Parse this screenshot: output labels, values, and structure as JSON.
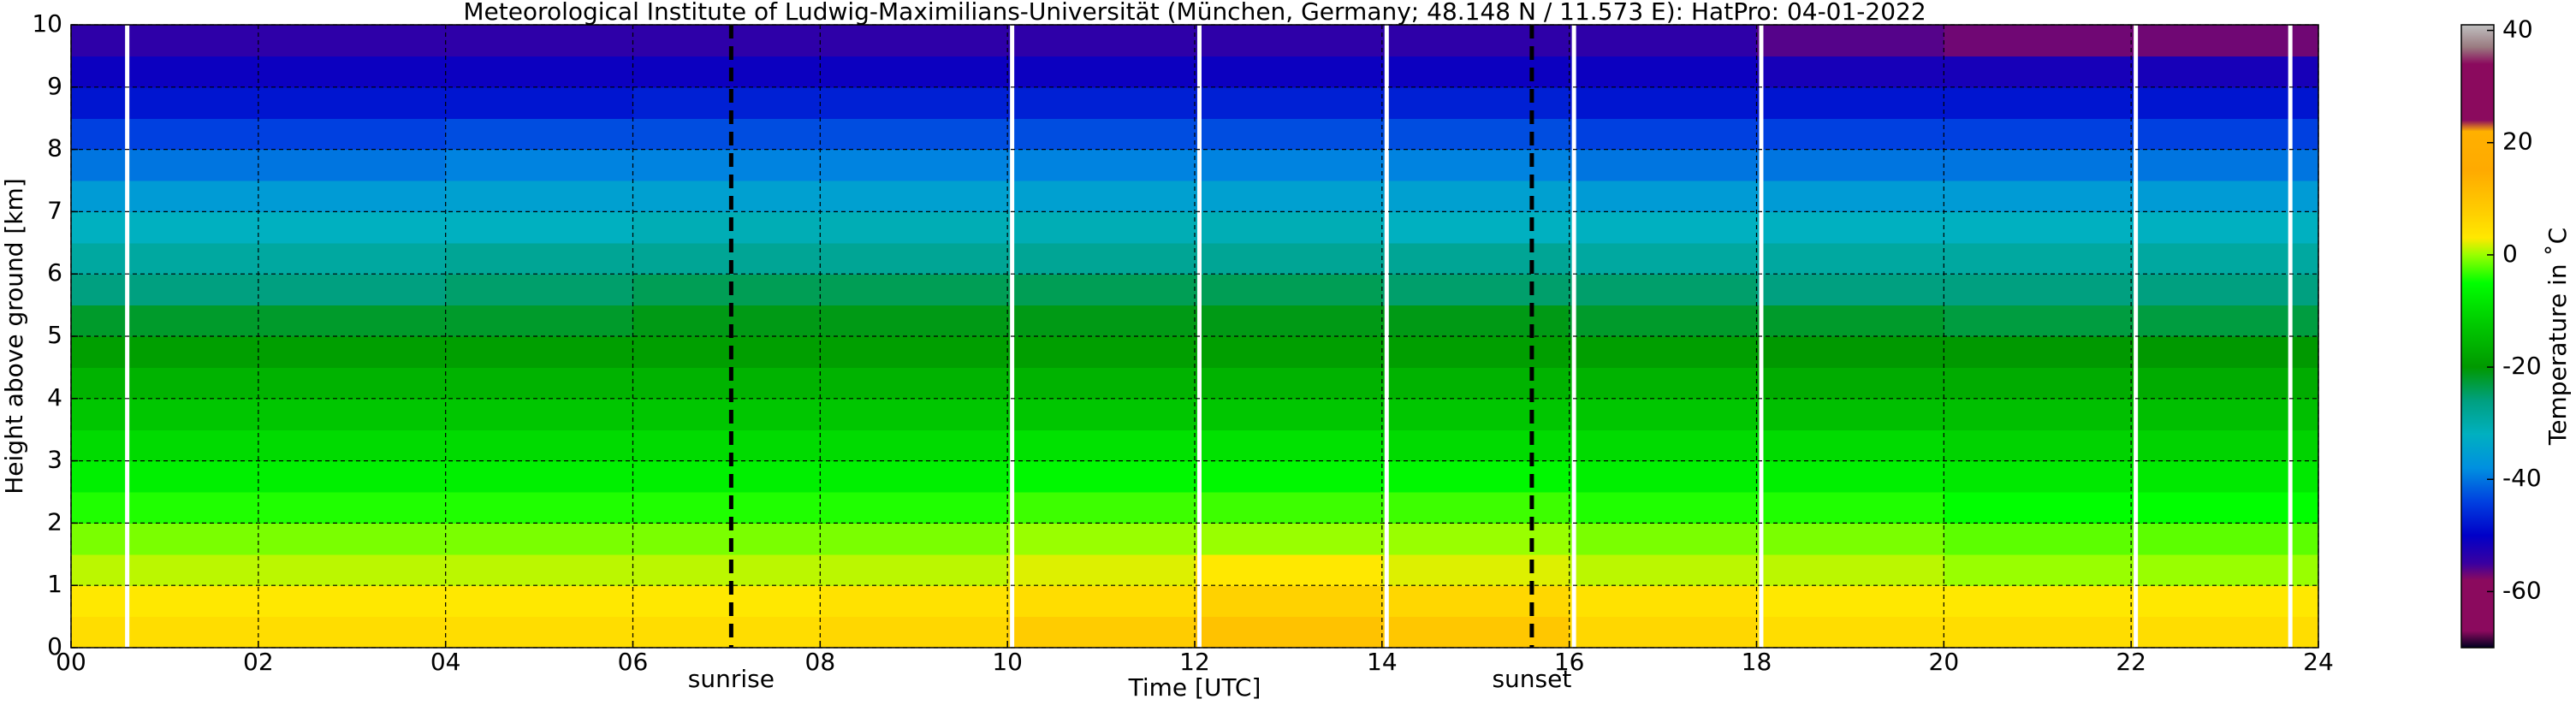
{
  "chart_data": {
    "type": "heatmap",
    "title": "Meteorological Institute of Ludwig-Maximilians-Universität (München, Germany; 48.148 N / 11.573 E):    HatPro: 04-01-2022",
    "x_label": "Time [UTC]",
    "y_label": "Height above ground [km]",
    "colorbar_label": "Temperature in ˚C",
    "x": [
      1,
      3,
      5,
      7,
      9,
      11,
      13,
      15,
      17,
      19,
      21,
      23
    ],
    "y": [
      0.25,
      0.75,
      1.25,
      1.75,
      2.25,
      2.75,
      3.25,
      3.75,
      4.25,
      4.75,
      5.25,
      5.75,
      6.25,
      6.75,
      7.25,
      7.75,
      8.25,
      8.75,
      9.25,
      9.75
    ],
    "z": [
      [
        5,
        5,
        5,
        5,
        6,
        8,
        10,
        9,
        6,
        5,
        5,
        5
      ],
      [
        3,
        3,
        3,
        3,
        4,
        5,
        7,
        6,
        4,
        3,
        3,
        3
      ],
      [
        1,
        1,
        1,
        1,
        1,
        2,
        3,
        2,
        1,
        1,
        0,
        0
      ],
      [
        -1,
        -1,
        -1,
        -1,
        -1,
        0,
        0,
        0,
        -1,
        -1,
        -2,
        -2
      ],
      [
        -4,
        -4,
        -4,
        -4,
        -4,
        -3,
        -3,
        -3,
        -4,
        -4,
        -5,
        -5
      ],
      [
        -7,
        -7,
        -7,
        -7,
        -7,
        -6,
        -6,
        -6,
        -7,
        -7,
        -8,
        -8
      ],
      [
        -10,
        -10,
        -10,
        -10,
        -10,
        -9,
        -9,
        -10,
        -10,
        -10,
        -11,
        -11
      ],
      [
        -13,
        -13,
        -13,
        -13,
        -13,
        -13,
        -13,
        -13,
        -13,
        -14,
        -14,
        -14
      ],
      [
        -16,
        -16,
        -16,
        -16,
        -16,
        -16,
        -16,
        -16,
        -16,
        -17,
        -17,
        -17
      ],
      [
        -19,
        -19,
        -19,
        -19,
        -19,
        -19,
        -19,
        -19,
        -19,
        -20,
        -20,
        -20
      ],
      [
        -22,
        -22,
        -22,
        -21,
        -21,
        -21,
        -21,
        -21,
        -22,
        -22,
        -23,
        -23
      ],
      [
        -26,
        -26,
        -25,
        -24,
        -24,
        -24,
        -24,
        -25,
        -25,
        -26,
        -26,
        -26
      ],
      [
        -29,
        -29,
        -28,
        -28,
        -28,
        -28,
        -28,
        -28,
        -29,
        -29,
        -29,
        -29
      ],
      [
        -32,
        -32,
        -32,
        -31,
        -31,
        -31,
        -31,
        -32,
        -32,
        -32,
        -32,
        -32
      ],
      [
        -36,
        -36,
        -35,
        -35,
        -35,
        -35,
        -35,
        -35,
        -36,
        -36,
        -36,
        -36
      ],
      [
        -40,
        -40,
        -39,
        -39,
        -39,
        -39,
        -39,
        -39,
        -40,
        -40,
        -40,
        -40
      ],
      [
        -44,
        -44,
        -43,
        -43,
        -43,
        -43,
        -43,
        -43,
        -44,
        -44,
        -44,
        -44
      ],
      [
        -48,
        -48,
        -48,
        -47,
        -47,
        -47,
        -47,
        -47,
        -48,
        -48,
        -48,
        -48
      ],
      [
        -51,
        -51,
        -51,
        -51,
        -51,
        -51,
        -51,
        -51,
        -51,
        -52,
        -52,
        -52
      ],
      [
        -54,
        -54,
        -54,
        -54,
        -54,
        -54,
        -54,
        -54,
        -54,
        -56,
        -57,
        -57
      ]
    ],
    "xlim": [
      0,
      24
    ],
    "xticks": [
      {
        "value": 0,
        "label": "00"
      },
      {
        "value": 2,
        "label": "02"
      },
      {
        "value": 4,
        "label": "04"
      },
      {
        "value": 6,
        "label": "06"
      },
      {
        "value": 8,
        "label": "08"
      },
      {
        "value": 10,
        "label": "10"
      },
      {
        "value": 12,
        "label": "12"
      },
      {
        "value": 14,
        "label": "14"
      },
      {
        "value": 16,
        "label": "16"
      },
      {
        "value": 18,
        "label": "18"
      },
      {
        "value": 20,
        "label": "20"
      },
      {
        "value": 22,
        "label": "22"
      },
      {
        "value": 24,
        "label": "24"
      }
    ],
    "ylim": [
      0,
      10
    ],
    "yticks": [
      0,
      1,
      2,
      3,
      4,
      5,
      6,
      7,
      8,
      9,
      10
    ],
    "clim": [
      -70,
      41
    ],
    "cticks": [
      -60,
      -40,
      -20,
      0,
      20,
      40
    ],
    "colormap": [
      [
        -70,
        "#000020"
      ],
      [
        -67,
        "#8b0a5e"
      ],
      [
        -58,
        "#8b0a5e"
      ],
      [
        -55,
        "#3a00a0"
      ],
      [
        -50,
        "#0000c8"
      ],
      [
        -44,
        "#0040e0"
      ],
      [
        -38,
        "#0090e0"
      ],
      [
        -32,
        "#00b0c0"
      ],
      [
        -26,
        "#00a080"
      ],
      [
        -20,
        "#009900"
      ],
      [
        -12,
        "#00cc00"
      ],
      [
        -5,
        "#00ff00"
      ],
      [
        0,
        "#99ff00"
      ],
      [
        3,
        "#ffe800"
      ],
      [
        8,
        "#ffcc00"
      ],
      [
        15,
        "#ffaa00"
      ],
      [
        22,
        "#ffb000"
      ],
      [
        24,
        "#8b0a5e"
      ],
      [
        34,
        "#8b0a5e"
      ],
      [
        37,
        "#9a7a80"
      ],
      [
        41,
        "#c0c0c0"
      ]
    ],
    "grid": true,
    "gaps": [
      0.6,
      10.05,
      12.05,
      14.05,
      16.05,
      18.05,
      22.05,
      23.7
    ],
    "annotations": [
      {
        "x": 7.05,
        "label": "sunrise"
      },
      {
        "x": 15.6,
        "label": "sunset"
      }
    ]
  }
}
